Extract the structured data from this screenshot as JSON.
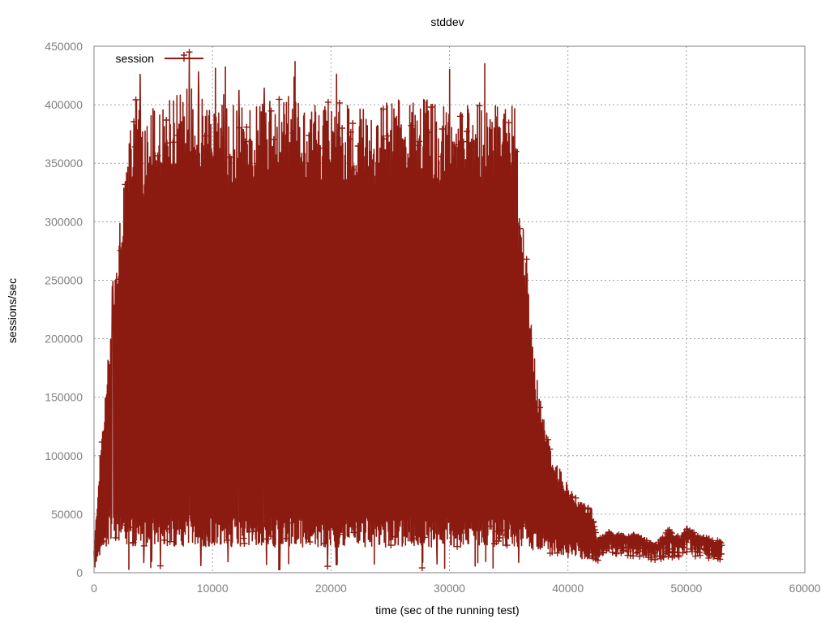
{
  "chart_data": {
    "type": "line",
    "title": "stddev",
    "xlabel": "time (sec of the running test)",
    "ylabel": "sessions/sec",
    "xlim": [
      0,
      60000
    ],
    "ylim": [
      0,
      450000
    ],
    "x_ticks": [
      0,
      10000,
      20000,
      30000,
      40000,
      50000,
      60000
    ],
    "y_ticks": [
      0,
      50000,
      100000,
      150000,
      200000,
      250000,
      300000,
      350000,
      400000,
      450000
    ],
    "grid": true,
    "legend_position": "top-left",
    "series_color": "#8b1a10",
    "marker": "plus",
    "series": [
      {
        "name": "session",
        "envelope": {
          "x": [
            0,
            500,
            1000,
            1500,
            2000,
            2500,
            3000,
            3500,
            4000,
            5000,
            6000,
            7000,
            8000,
            9000,
            10000,
            12000,
            14000,
            16000,
            18000,
            20000,
            22000,
            24000,
            26000,
            28000,
            30000,
            32000,
            34000,
            35500,
            36000,
            36500,
            37000,
            37500,
            38000,
            38500,
            39000,
            39500,
            40000,
            40500,
            41000,
            41500,
            42000,
            42500,
            43000,
            43500,
            44000,
            44500,
            45000,
            45500,
            46000,
            46500,
            47000,
            47500,
            48000,
            48500,
            49000,
            49500,
            50000,
            50500,
            51000,
            51500,
            52000,
            52500,
            53000
          ],
          "upper": [
            20000,
            100000,
            160000,
            230000,
            280000,
            340000,
            400000,
            410000,
            390000,
            400000,
            405000,
            410000,
            420000,
            410000,
            400000,
            400000,
            400000,
            410000,
            400000,
            405000,
            400000,
            400000,
            405000,
            405000,
            400000,
            400000,
            400000,
            400000,
            330000,
            270000,
            200000,
            160000,
            130000,
            110000,
            95000,
            85000,
            75000,
            68000,
            62000,
            58000,
            55000,
            28000,
            32000,
            35000,
            34000,
            32000,
            30000,
            33000,
            32000,
            28000,
            26000,
            25000,
            30000,
            38000,
            33000,
            32000,
            38000,
            35000,
            32000,
            30000,
            29000,
            28000,
            27000
          ],
          "lower": [
            5000,
            20000,
            40000,
            50000,
            45000,
            40000,
            45000,
            40000,
            40000,
            42000,
            42000,
            40000,
            42000,
            40000,
            40000,
            40000,
            40000,
            40000,
            40000,
            40000,
            40000,
            40000,
            40000,
            40000,
            40000,
            40000,
            40000,
            40000,
            40000,
            38000,
            35000,
            32000,
            30000,
            28000,
            26000,
            25000,
            24000,
            23000,
            22000,
            21000,
            20000,
            18000,
            25000,
            30000,
            28000,
            26000,
            24000,
            26000,
            25000,
            22000,
            20000,
            20000,
            22000,
            25000,
            22000,
            24000,
            28000,
            26000,
            24000,
            23000,
            22000,
            21000,
            18000
          ]
        },
        "peak_max": 445000
      }
    ]
  }
}
